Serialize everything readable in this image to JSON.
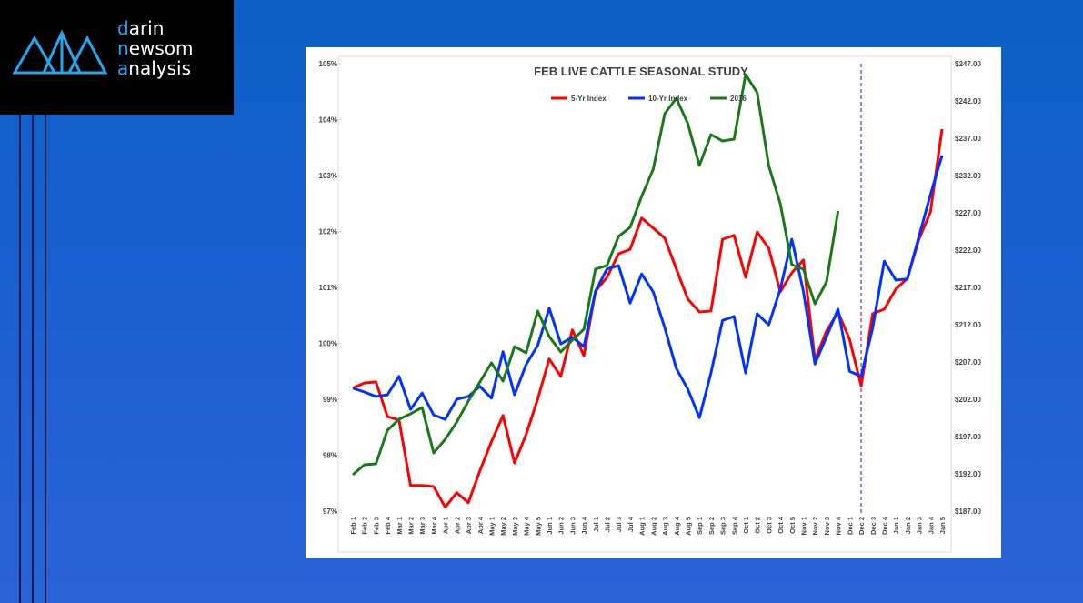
{
  "logo": {
    "lines": [
      "darin",
      "newsom",
      "analysis"
    ]
  },
  "chart_data": {
    "type": "line",
    "title": "FEB LIVE CATTLE SEASONAL STUDY",
    "categories": [
      "Feb 1",
      "Feb 2",
      "Feb 3",
      "Feb 4",
      "Mar 1",
      "Mar 2",
      "Mar 3",
      "Mar 4",
      "Apr 1",
      "Apr 2",
      "Apr 3",
      "Apr 4",
      "May 1",
      "May 2",
      "May 3",
      "May 4",
      "May 5",
      "Jun 1",
      "Jun 2",
      "Jun 3",
      "Jun 4",
      "Jul 1",
      "Jul 2",
      "Jul 3",
      "Jul 4",
      "Aug 1",
      "Aug 2",
      "Aug 3",
      "Aug 4",
      "Aug 5",
      "Sep 1",
      "Sep 2",
      "Sep 3",
      "Sep 4",
      "Oct 1",
      "Oct 2",
      "Oct 3",
      "Oct 4",
      "Oct 5",
      "Nov 1",
      "Nov 2",
      "Nov 3",
      "Nov 4",
      "Dec 1",
      "Dec 2",
      "Dec 3",
      "Dec 4",
      "Jan 1",
      "Jan 2",
      "Jan 3",
      "Jan 4",
      "Jan 5"
    ],
    "series": [
      {
        "name": "5-Yr Index",
        "color": "#ff0000",
        "values": [
          99.2,
          99.29,
          99.31,
          98.69,
          98.63,
          97.46,
          97.46,
          97.44,
          97.07,
          97.33,
          97.15,
          97.72,
          98.24,
          98.71,
          97.86,
          98.37,
          99.0,
          99.72,
          99.41,
          100.24,
          99.78,
          100.93,
          101.18,
          101.6,
          101.68,
          102.24,
          102.06,
          101.88,
          101.33,
          100.79,
          100.56,
          100.58,
          101.86,
          101.93,
          101.18,
          101.99,
          101.7,
          100.92,
          101.26,
          101.49,
          99.7,
          100.22,
          100.56,
          100.07,
          99.24,
          100.53,
          100.61,
          100.97,
          101.16,
          101.86,
          102.35,
          103.83
        ]
      },
      {
        "name": "10-Yr Index",
        "color": "#0033ff",
        "values": [
          99.2,
          99.13,
          99.05,
          99.08,
          99.41,
          98.82,
          99.11,
          98.72,
          98.64,
          99.0,
          99.05,
          99.23,
          99.02,
          99.85,
          99.08,
          99.62,
          99.96,
          100.63,
          99.99,
          100.11,
          99.94,
          100.93,
          101.33,
          101.39,
          100.72,
          101.24,
          100.92,
          100.28,
          99.55,
          99.18,
          98.67,
          99.47,
          100.41,
          100.48,
          99.47,
          100.53,
          100.33,
          100.97,
          101.86,
          100.93,
          99.63,
          100.12,
          100.61,
          99.5,
          99.41,
          100.28,
          101.47,
          101.13,
          101.15,
          101.91,
          102.66,
          103.36
        ]
      },
      {
        "name": "2016",
        "color": "#1a7a1a",
        "axis": "y2",
        "values": [
          191.88,
          193.22,
          193.34,
          197.85,
          199.32,
          200.05,
          200.9,
          194.8,
          196.63,
          198.95,
          201.76,
          204.32,
          206.88,
          204.44,
          209.07,
          208.22,
          213.83,
          210.41,
          208.34,
          209.93,
          211.39,
          219.44,
          219.93,
          223.83,
          225.05,
          229.2,
          232.85,
          240.29,
          242.37,
          238.95,
          233.34,
          237.49,
          236.63,
          236.88,
          245.54,
          243.1,
          233.34,
          228.22,
          220.05,
          219.44,
          214.8,
          217.73,
          227.24,
          null,
          null,
          null,
          null,
          null,
          null,
          null,
          null,
          null
        ]
      }
    ],
    "ylim": [
      97,
      105
    ],
    "yticks": [
      {
        "value": 97,
        "label": "97%"
      },
      {
        "value": 98,
        "label": "98%"
      },
      {
        "value": 99,
        "label": "99%"
      },
      {
        "value": 100,
        "label": "100%"
      },
      {
        "value": 101,
        "label": "101%"
      },
      {
        "value": 102,
        "label": "102%"
      },
      {
        "value": 103,
        "label": "103%"
      },
      {
        "value": 104,
        "label": "104%"
      },
      {
        "value": 105,
        "label": "105%"
      }
    ],
    "y2lim": [
      187,
      247
    ],
    "y2ticks": [
      {
        "value": 187,
        "label": "$187.00"
      },
      {
        "value": 192,
        "label": "$192.00"
      },
      {
        "value": 197,
        "label": "$197.00"
      },
      {
        "value": 202,
        "label": "$202.00"
      },
      {
        "value": 207,
        "label": "$207.00"
      },
      {
        "value": 212,
        "label": "$212.00"
      },
      {
        "value": 217,
        "label": "$217.00"
      },
      {
        "value": 222,
        "label": "$222.00"
      },
      {
        "value": 227,
        "label": "$227.00"
      },
      {
        "value": 232,
        "label": "$232.00"
      },
      {
        "value": 237,
        "label": "$237.00"
      },
      {
        "value": 242,
        "label": "$242.00"
      },
      {
        "value": 247,
        "label": "$247.00"
      }
    ],
    "grid": false,
    "legend": "top",
    "vertical_line_at": "Dec 2",
    "vertical_line_color": "#7030a0"
  }
}
